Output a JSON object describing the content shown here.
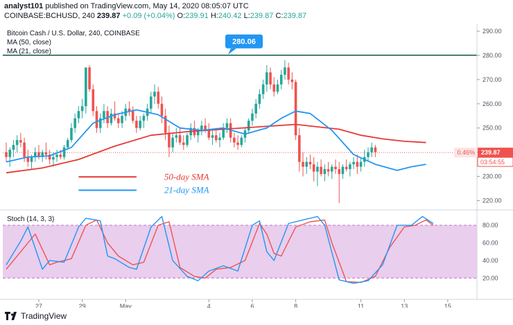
{
  "header": {
    "author": "analyst101",
    "published_text": "published on TradingView.com, May 14, 2020 08:05:07 UTC",
    "symbol": "COINBASE:BCHUSD, 240",
    "last": "239.87",
    "change": "+0.09 (+0.04%)",
    "o_label": "O:",
    "o_value": "239.91",
    "h_label": "H:",
    "h_value": "240.42",
    "l_label": "L:",
    "l_value": "239.87",
    "c_label": "C:",
    "c_value": "239.87"
  },
  "footer": {
    "brand": "TradingView"
  },
  "colors": {
    "up": "#26a69a",
    "down": "#ef5350",
    "ma50": "#e53935",
    "ma21": "#2196f3",
    "stoch_k": "#2196f3",
    "stoch_d": "#ef5350",
    "stoch_band": "#e1bee7",
    "resistance": "#1b5e4a",
    "price_label": "#ef5350",
    "resistance_label": "#2196f3"
  },
  "chart_data": {
    "type": "candlestick",
    "title": "Bitcoin Cash / U.S. Dollar, 240, COINBASE",
    "legend": [
      "MA (50, close)",
      "MA (21, close)"
    ],
    "price_axis": {
      "ylim": [
        217,
        292
      ],
      "ticks": [
        "290.00",
        "280.00",
        "270.00",
        "260.00",
        "250.00",
        "240.00",
        "230.00",
        "220.00"
      ]
    },
    "x_ticks": [
      {
        "label": "27",
        "bar": 9
      },
      {
        "label": "29",
        "bar": 21
      },
      {
        "label": "May",
        "bar": 33
      },
      {
        "label": "4",
        "bar": 56
      },
      {
        "label": "6",
        "bar": 68
      },
      {
        "label": "8",
        "bar": 80
      },
      {
        "label": "11",
        "bar": 98
      },
      {
        "label": "13",
        "bar": 110
      },
      {
        "label": "15",
        "bar": 122
      }
    ],
    "resistance": {
      "value": 280.06,
      "label": "280.06"
    },
    "current": {
      "value": 239.87,
      "pct_label": "0.46%",
      "price_label": "239.87",
      "timer_label": "03:54:55"
    },
    "annotations": [
      {
        "text": "50-day SMA",
        "series": "ma50",
        "price": 229.8,
        "bar_start": 20,
        "bar_end": 36
      },
      {
        "text": "21-day SMA",
        "series": "ma21",
        "price": 224.3,
        "bar_start": 20,
        "bar_end": 36
      }
    ],
    "candles": [
      [
        240,
        244,
        236,
        238
      ],
      [
        238,
        242,
        234,
        241
      ],
      [
        241,
        245,
        238,
        243
      ],
      [
        243,
        247,
        240,
        245
      ],
      [
        245,
        248,
        242,
        244
      ],
      [
        244,
        246,
        236,
        238
      ],
      [
        238,
        241,
        234,
        236
      ],
      [
        236,
        239,
        233,
        238
      ],
      [
        238,
        242,
        236,
        240
      ],
      [
        240,
        243,
        237,
        238
      ],
      [
        238,
        241,
        236,
        240
      ],
      [
        240,
        244,
        237,
        239
      ],
      [
        239,
        241,
        235,
        237
      ],
      [
        237,
        240,
        234,
        238
      ],
      [
        238,
        241,
        236,
        239
      ],
      [
        239,
        241,
        237,
        238
      ],
      [
        238,
        243,
        237,
        242
      ],
      [
        242,
        246,
        241,
        245
      ],
      [
        245,
        252,
        244,
        250
      ],
      [
        250,
        256,
        248,
        254
      ],
      [
        254,
        259,
        252,
        257
      ],
      [
        257,
        262,
        254,
        259
      ],
      [
        259,
        275,
        256,
        275
      ],
      [
        275,
        276,
        265,
        266
      ],
      [
        266,
        268,
        255,
        257
      ],
      [
        257,
        259,
        248,
        250
      ],
      [
        250,
        256,
        248,
        254
      ],
      [
        254,
        260,
        252,
        257
      ],
      [
        257,
        259,
        250,
        252
      ],
      [
        252,
        258,
        251,
        256
      ],
      [
        256,
        261,
        253,
        254
      ],
      [
        254,
        256,
        250,
        252
      ],
      [
        252,
        257,
        250,
        255
      ],
      [
        255,
        260,
        253,
        258
      ],
      [
        258,
        261,
        255,
        257
      ],
      [
        257,
        259,
        252,
        253
      ],
      [
        253,
        255,
        248,
        250
      ],
      [
        250,
        255,
        249,
        253
      ],
      [
        253,
        256,
        250,
        255
      ],
      [
        255,
        260,
        253,
        258
      ],
      [
        258,
        265,
        256,
        263
      ],
      [
        263,
        268,
        260,
        265
      ],
      [
        265,
        267,
        258,
        260
      ],
      [
        260,
        263,
        252,
        255
      ],
      [
        255,
        258,
        245,
        248
      ],
      [
        248,
        251,
        238,
        242
      ],
      [
        242,
        248,
        240,
        246
      ],
      [
        246,
        250,
        244,
        247
      ],
      [
        247,
        250,
        243,
        244
      ],
      [
        244,
        247,
        241,
        243
      ],
      [
        243,
        248,
        242,
        247
      ],
      [
        247,
        252,
        245,
        250
      ],
      [
        250,
        253,
        246,
        247
      ],
      [
        247,
        250,
        244,
        249
      ],
      [
        249,
        253,
        247,
        251
      ],
      [
        251,
        254,
        248,
        249
      ],
      [
        249,
        252,
        245,
        246
      ],
      [
        246,
        249,
        243,
        247
      ],
      [
        247,
        250,
        244,
        245
      ],
      [
        245,
        248,
        242,
        246
      ],
      [
        246,
        252,
        245,
        250
      ],
      [
        250,
        254,
        248,
        252
      ],
      [
        252,
        254,
        244,
        246
      ],
      [
        246,
        248,
        242,
        244
      ],
      [
        244,
        247,
        241,
        243
      ],
      [
        243,
        247,
        242,
        246
      ],
      [
        246,
        250,
        244,
        249
      ],
      [
        249,
        254,
        248,
        253
      ],
      [
        253,
        258,
        251,
        256
      ],
      [
        256,
        262,
        254,
        260
      ],
      [
        260,
        266,
        258,
        264
      ],
      [
        264,
        270,
        262,
        268
      ],
      [
        268,
        276,
        265,
        273
      ],
      [
        273,
        275,
        266,
        268
      ],
      [
        268,
        271,
        263,
        265
      ],
      [
        265,
        270,
        264,
        268
      ],
      [
        268,
        274,
        266,
        272
      ],
      [
        272,
        278,
        270,
        275
      ],
      [
        275,
        277,
        268,
        270
      ],
      [
        270,
        273,
        266,
        269
      ],
      [
        269,
        270,
        245,
        247
      ],
      [
        247,
        250,
        232,
        236
      ],
      [
        236,
        240,
        230,
        234
      ],
      [
        234,
        238,
        231,
        236
      ],
      [
        236,
        239,
        233,
        235
      ],
      [
        235,
        238,
        228,
        232
      ],
      [
        232,
        236,
        226,
        234
      ],
      [
        234,
        237,
        230,
        231
      ],
      [
        231,
        235,
        228,
        233
      ],
      [
        233,
        236,
        230,
        232
      ],
      [
        232,
        235,
        229,
        234
      ],
      [
        234,
        237,
        231,
        233
      ],
      [
        233,
        236,
        219,
        231
      ],
      [
        231,
        235,
        229,
        234
      ],
      [
        234,
        237,
        232,
        233
      ],
      [
        233,
        236,
        230,
        235
      ],
      [
        235,
        238,
        233,
        236
      ],
      [
        236,
        239,
        231,
        234
      ],
      [
        234,
        238,
        232,
        236
      ],
      [
        236,
        241,
        234,
        238
      ],
      [
        238,
        242,
        236,
        240
      ],
      [
        240,
        244,
        238,
        242
      ],
      [
        242,
        243,
        238,
        240
      ]
    ],
    "ma50": [
      [
        0,
        231.5
      ],
      [
        10,
        233.5
      ],
      [
        20,
        237
      ],
      [
        30,
        242.5
      ],
      [
        40,
        247
      ],
      [
        50,
        248.5
      ],
      [
        60,
        249.5
      ],
      [
        70,
        250.5
      ],
      [
        80,
        251.5
      ],
      [
        86,
        250.5
      ],
      [
        92,
        249.5
      ],
      [
        98,
        247
      ],
      [
        104,
        245.5
      ],
      [
        110,
        244.5
      ],
      [
        116,
        244
      ]
    ],
    "ma21": [
      [
        0,
        236
      ],
      [
        6,
        238
      ],
      [
        12,
        238.5
      ],
      [
        18,
        242
      ],
      [
        24,
        252
      ],
      [
        30,
        255.5
      ],
      [
        36,
        257.5
      ],
      [
        42,
        255.5
      ],
      [
        48,
        250
      ],
      [
        54,
        249
      ],
      [
        60,
        250
      ],
      [
        66,
        247.5
      ],
      [
        72,
        250
      ],
      [
        76,
        254
      ],
      [
        80,
        257
      ],
      [
        84,
        256
      ],
      [
        90,
        249
      ],
      [
        96,
        239
      ],
      [
        102,
        235
      ],
      [
        108,
        232.5
      ],
      [
        112,
        234
      ],
      [
        116,
        235
      ]
    ],
    "stoch": {
      "label": "Stoch (14, 3, 3)",
      "ylim": [
        10,
        95
      ],
      "ticks": [
        "80.00",
        "60.00",
        "40.00",
        "20.00"
      ],
      "band": [
        20,
        80
      ],
      "k": [
        [
          0,
          35
        ],
        [
          4,
          62
        ],
        [
          6,
          78
        ],
        [
          10,
          30
        ],
        [
          12,
          40
        ],
        [
          16,
          38
        ],
        [
          20,
          78
        ],
        [
          22,
          88
        ],
        [
          26,
          85
        ],
        [
          28,
          45
        ],
        [
          30,
          42
        ],
        [
          34,
          32
        ],
        [
          36,
          30
        ],
        [
          40,
          78
        ],
        [
          43,
          90
        ],
        [
          46,
          40
        ],
        [
          50,
          22
        ],
        [
          53,
          17
        ],
        [
          56,
          28
        ],
        [
          60,
          34
        ],
        [
          64,
          28
        ],
        [
          68,
          80
        ],
        [
          70,
          85
        ],
        [
          72,
          50
        ],
        [
          74,
          40
        ],
        [
          78,
          82
        ],
        [
          82,
          86
        ],
        [
          86,
          90
        ],
        [
          88,
          80
        ],
        [
          92,
          18
        ],
        [
          96,
          14
        ],
        [
          100,
          17
        ],
        [
          104,
          35
        ],
        [
          108,
          80
        ],
        [
          112,
          80
        ],
        [
          115,
          90
        ],
        [
          118,
          82
        ]
      ],
      "d": [
        [
          0,
          30
        ],
        [
          5,
          55
        ],
        [
          8,
          70
        ],
        [
          12,
          35
        ],
        [
          14,
          38
        ],
        [
          18,
          42
        ],
        [
          22,
          80
        ],
        [
          25,
          86
        ],
        [
          28,
          60
        ],
        [
          31,
          45
        ],
        [
          35,
          35
        ],
        [
          38,
          38
        ],
        [
          42,
          80
        ],
        [
          45,
          84
        ],
        [
          48,
          32
        ],
        [
          52,
          22
        ],
        [
          55,
          20
        ],
        [
          58,
          30
        ],
        [
          62,
          32
        ],
        [
          66,
          40
        ],
        [
          70,
          82
        ],
        [
          72,
          70
        ],
        [
          74,
          48
        ],
        [
          76,
          45
        ],
        [
          80,
          78
        ],
        [
          84,
          84
        ],
        [
          88,
          86
        ],
        [
          90,
          60
        ],
        [
          94,
          16
        ],
        [
          98,
          15
        ],
        [
          102,
          22
        ],
        [
          106,
          55
        ],
        [
          110,
          78
        ],
        [
          113,
          80
        ],
        [
          116,
          86
        ],
        [
          118,
          80
        ]
      ]
    }
  }
}
